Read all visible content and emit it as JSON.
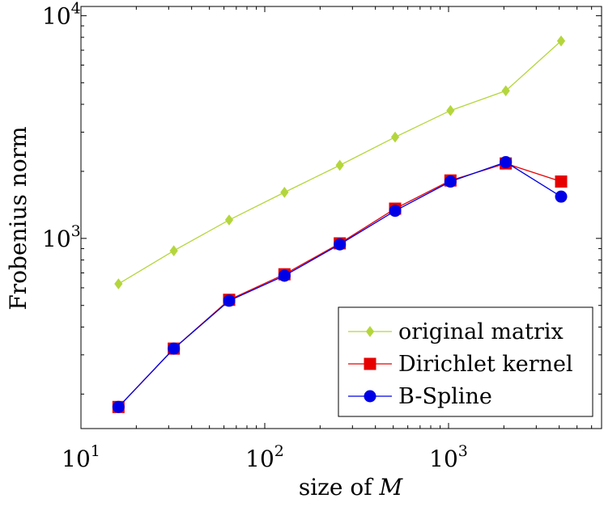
{
  "chart_data": {
    "type": "line",
    "xlabel_text": "size of ",
    "xlabel_var": "M",
    "ylabel": "Frobenius norm",
    "xscale": "log",
    "yscale": "log",
    "xlim": [
      10,
      6800
    ],
    "ylim": [
      140,
      11000
    ],
    "x_ticks": [
      {
        "value": 10,
        "base": "10",
        "exp": "1"
      },
      {
        "value": 100,
        "base": "10",
        "exp": "2"
      },
      {
        "value": 1000,
        "base": "10",
        "exp": "3"
      }
    ],
    "y_ticks": [
      {
        "value": 1000,
        "base": "10",
        "exp": "3"
      },
      {
        "value": 10000,
        "base": "10",
        "exp": "4"
      }
    ],
    "grid": false,
    "legend_position": "bottom-right",
    "x": [
      16,
      32,
      64,
      128,
      256,
      512,
      1024,
      2048,
      4096
    ],
    "series": [
      {
        "name": "original matrix",
        "color": "#b4d63c",
        "marker": "diamond",
        "values": [
          625,
          880,
          1210,
          1610,
          2130,
          2850,
          3750,
          4600,
          7700
        ]
      },
      {
        "name": "Dirichlet kernel",
        "color": "#e60000",
        "marker": "square",
        "values": [
          175,
          320,
          530,
          690,
          950,
          1360,
          1820,
          2170,
          1800
        ]
      },
      {
        "name": "B-Spline",
        "color": "#0000e6",
        "marker": "circle",
        "values": [
          175,
          320,
          525,
          680,
          940,
          1330,
          1800,
          2200,
          1540
        ]
      }
    ]
  }
}
